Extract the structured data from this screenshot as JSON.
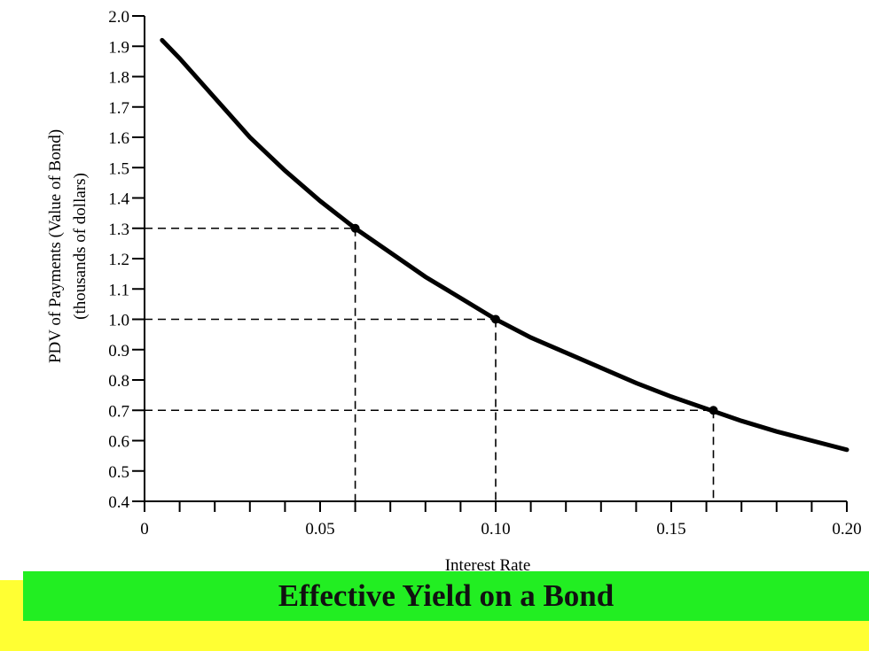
{
  "colors": {
    "banner_green": "#22ee22",
    "banner_yellow": "#ffff33",
    "curve": "#000000"
  },
  "banner": {
    "title": "Effective Yield on a Bond"
  },
  "chart_data": {
    "type": "line",
    "xlabel": "Interest Rate",
    "ylabel_line1": "PDV of Payments (Value of Bond)",
    "ylabel_line2": "(thousands of dollars)",
    "xlim": [
      0,
      0.2
    ],
    "ylim": [
      0.4,
      2.0
    ],
    "x_ticks": [
      {
        "value": 0,
        "label": "0"
      },
      {
        "value": 0.05,
        "label": "0.05"
      },
      {
        "value": 0.1,
        "label": "0.10"
      },
      {
        "value": 0.15,
        "label": "0.15"
      },
      {
        "value": 0.2,
        "label": "0.20"
      }
    ],
    "y_ticks": [
      {
        "value": 0.4,
        "label": "0.4"
      },
      {
        "value": 0.5,
        "label": "0.5"
      },
      {
        "value": 0.6,
        "label": "0.6"
      },
      {
        "value": 0.7,
        "label": "0.7"
      },
      {
        "value": 0.8,
        "label": "0.8"
      },
      {
        "value": 0.9,
        "label": "0.9"
      },
      {
        "value": 1.0,
        "label": "1.0"
      },
      {
        "value": 1.1,
        "label": "1.1"
      },
      {
        "value": 1.2,
        "label": "1.2"
      },
      {
        "value": 1.3,
        "label": "1.3"
      },
      {
        "value": 1.4,
        "label": "1.4"
      },
      {
        "value": 1.5,
        "label": "1.5"
      },
      {
        "value": 1.6,
        "label": "1.6"
      },
      {
        "value": 1.7,
        "label": "1.7"
      },
      {
        "value": 1.8,
        "label": "1.8"
      },
      {
        "value": 1.9,
        "label": "1.9"
      },
      {
        "value": 2.0,
        "label": "2.0"
      }
    ],
    "x_minor_tick_step": 0.01,
    "series": [
      {
        "x": [
          0.005,
          0.01,
          0.02,
          0.03,
          0.04,
          0.05,
          0.06,
          0.07,
          0.08,
          0.09,
          0.1,
          0.11,
          0.12,
          0.13,
          0.14,
          0.15,
          0.16,
          0.17,
          0.18,
          0.19,
          0.2
        ],
        "y": [
          1.92,
          1.86,
          1.73,
          1.6,
          1.49,
          1.39,
          1.3,
          1.22,
          1.14,
          1.07,
          1.0,
          0.94,
          0.89,
          0.84,
          0.79,
          0.745,
          0.705,
          0.665,
          0.63,
          0.6,
          0.57
        ]
      }
    ],
    "highlighted_points": [
      {
        "x": 0.06,
        "y": 1.3
      },
      {
        "x": 0.1,
        "y": 1.0
      },
      {
        "x": 0.162,
        "y": 0.7
      }
    ],
    "grid": false
  }
}
